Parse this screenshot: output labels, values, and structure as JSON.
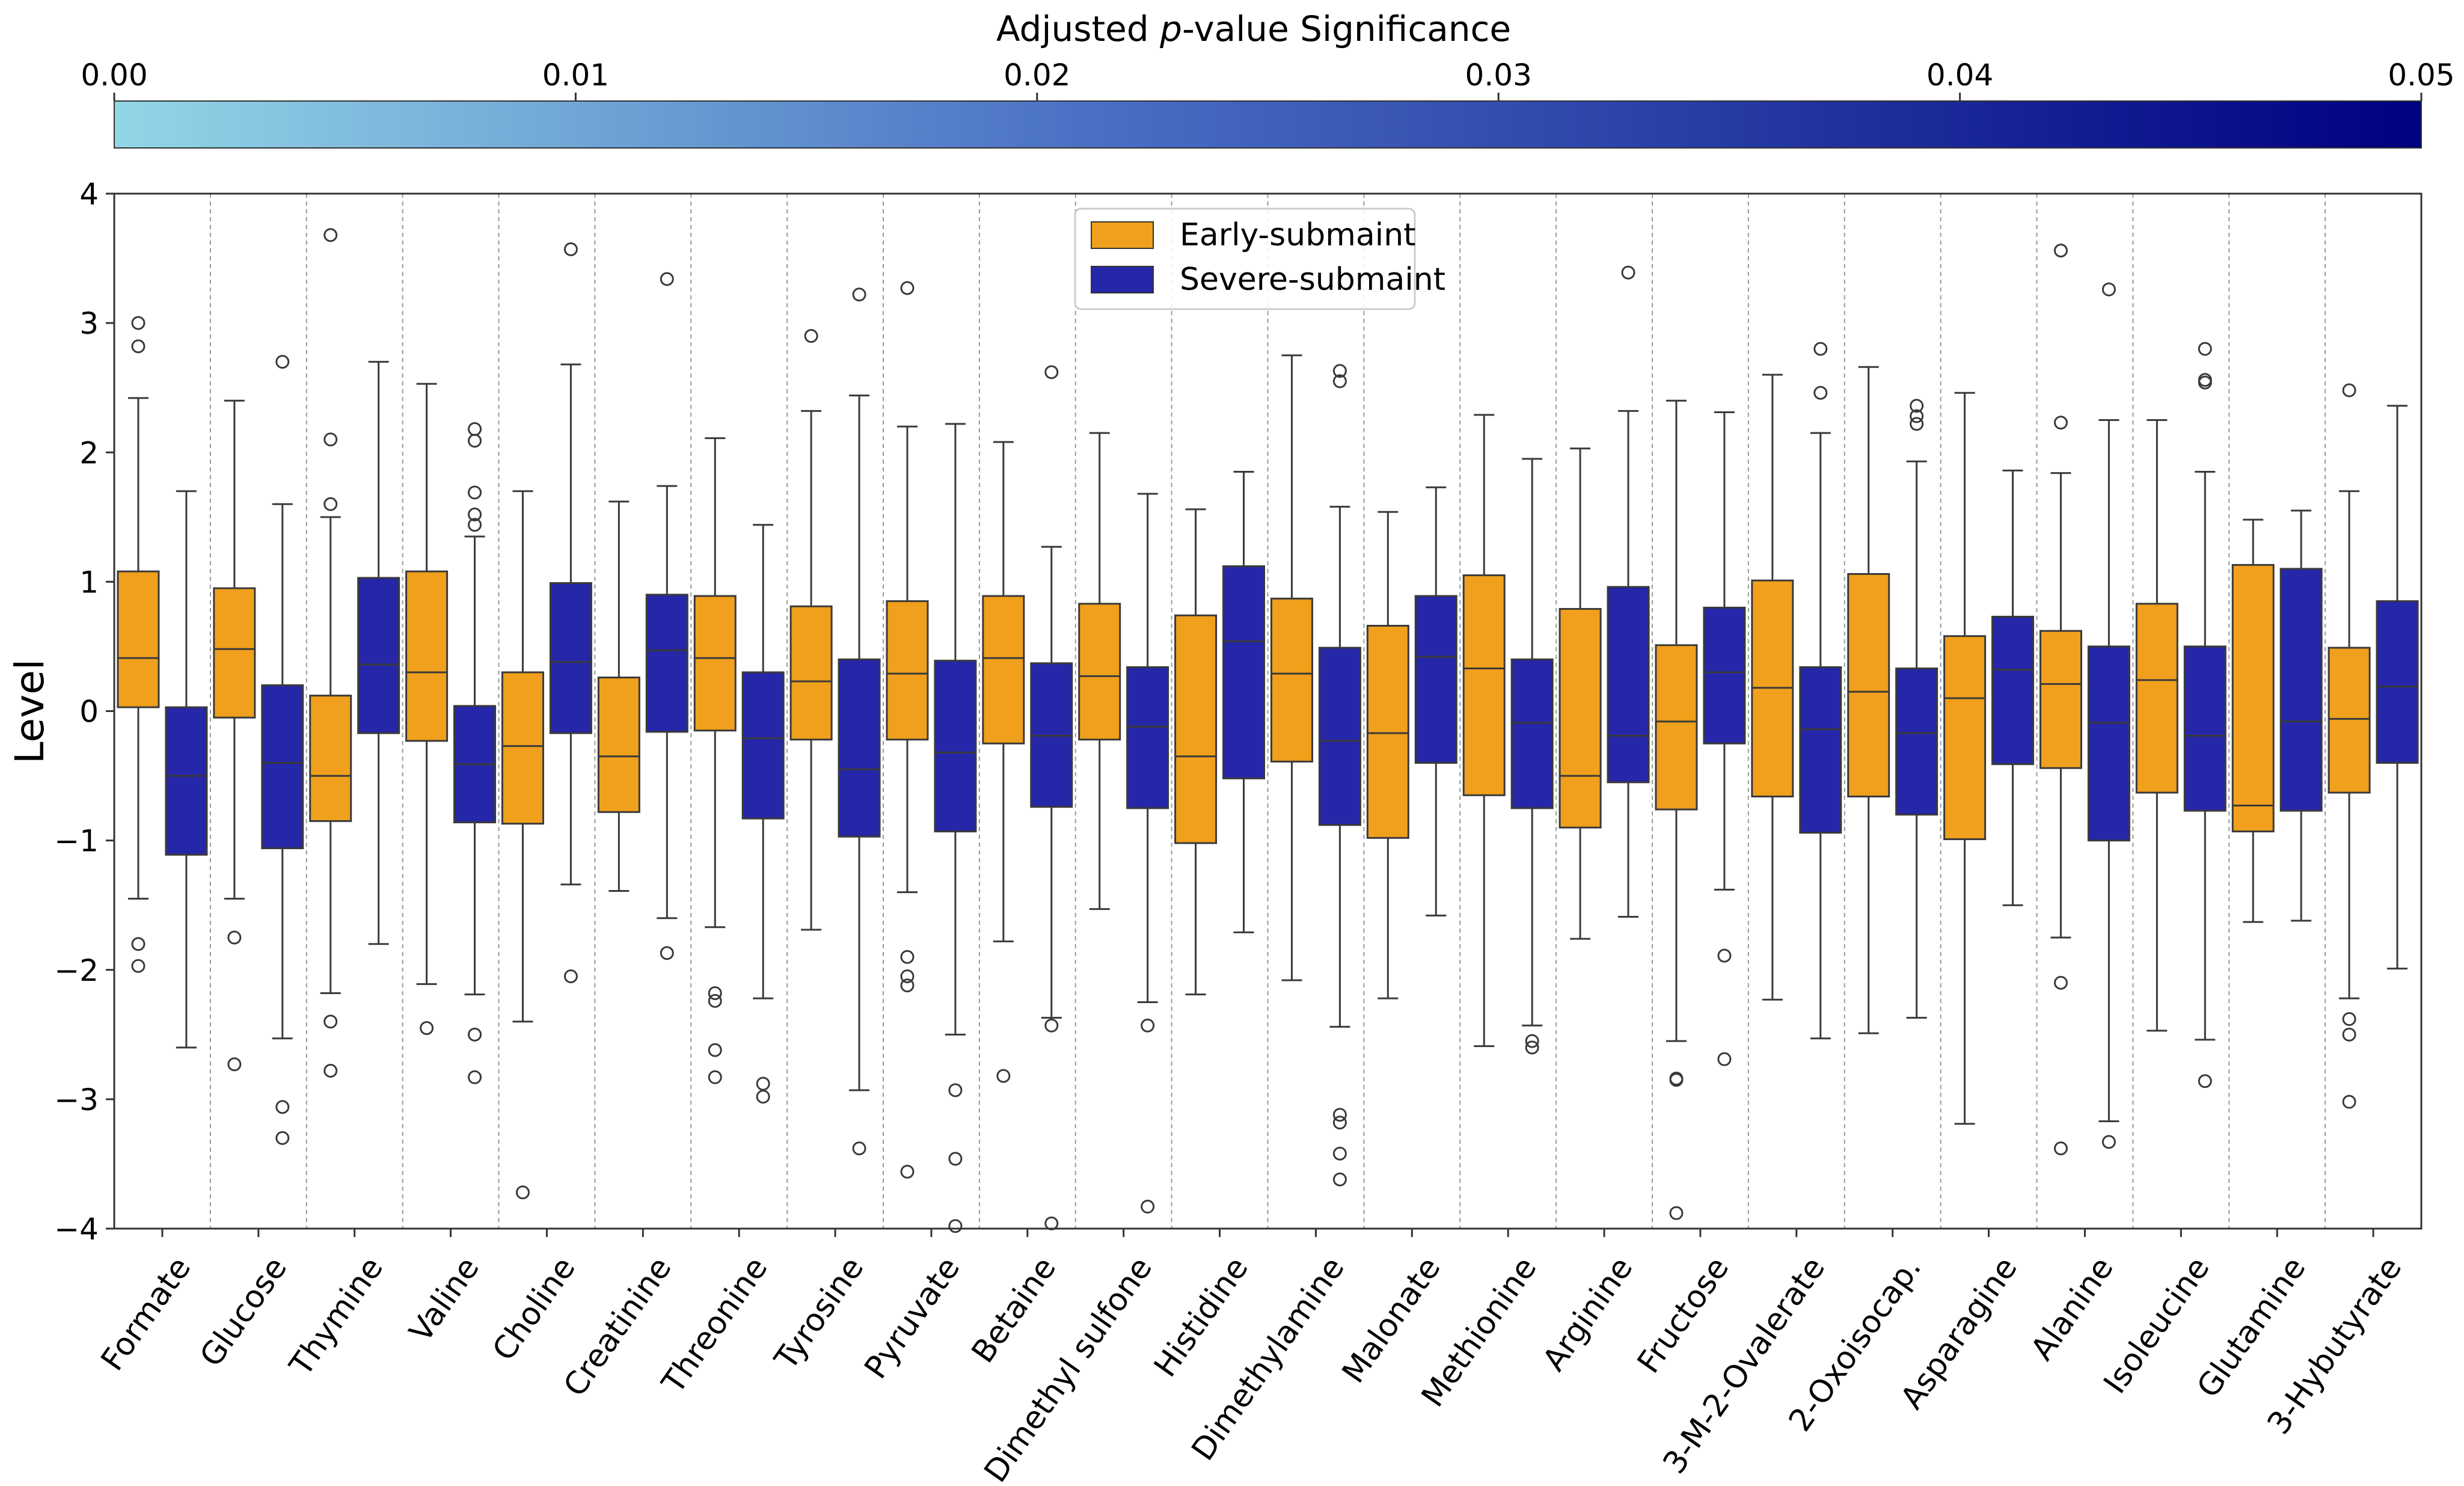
{
  "chart_data": {
    "type": "box",
    "ylabel": "Level",
    "ylim": [
      -4,
      4
    ],
    "yticks": [
      "4",
      "3",
      "2",
      "1",
      "0",
      "−1",
      "−2",
      "−3",
      "−4"
    ],
    "ytick_values": [
      4,
      3,
      2,
      1,
      0,
      -1,
      -2,
      -3,
      -4
    ],
    "colorbar": {
      "title_pre": "Adjusted ",
      "title_italic": "p",
      "title_post": "-value Significance",
      "ticks": [
        "0.00",
        "0.01",
        "0.02",
        "0.03",
        "0.04",
        "0.05"
      ],
      "range": [
        0,
        0.05
      ],
      "color_start": "#93d6e6",
      "color_mid": "#4a70c4",
      "color_end": "#000080"
    },
    "legend": {
      "position": "top-center",
      "entries": [
        {
          "label": "Early-submaint",
          "color": "#f0a01c"
        },
        {
          "label": "Severe-submaint",
          "color": "#2626a8"
        }
      ]
    },
    "series": [
      {
        "name": "Early-submaint",
        "color": "#f0a01c"
      },
      {
        "name": "Severe-submaint",
        "color": "#2626a8"
      }
    ],
    "categories": [
      {
        "label": "Formate",
        "early": {
          "q1": 0.03,
          "med": 0.41,
          "q3": 1.08,
          "lo": -1.45,
          "hi": 2.42,
          "out": [
            3.0,
            2.82,
            -1.8,
            -1.97
          ]
        },
        "severe": {
          "q1": -1.11,
          "med": -0.5,
          "q3": 0.03,
          "lo": -2.6,
          "hi": 1.7,
          "out": []
        }
      },
      {
        "label": "Glucose",
        "early": {
          "q1": -0.05,
          "med": 0.48,
          "q3": 0.95,
          "lo": -1.45,
          "hi": 2.4,
          "out": [
            -1.75,
            -2.73
          ]
        },
        "severe": {
          "q1": -1.06,
          "med": -0.4,
          "q3": 0.2,
          "lo": -2.53,
          "hi": 1.6,
          "out": [
            2.7,
            -3.06,
            -3.3
          ]
        }
      },
      {
        "label": "Thymine",
        "early": {
          "q1": -0.85,
          "med": -0.5,
          "q3": 0.12,
          "lo": -2.18,
          "hi": 1.5,
          "out": [
            3.68,
            2.1,
            1.6,
            -2.4,
            -2.78
          ]
        },
        "severe": {
          "q1": -0.17,
          "med": 0.36,
          "q3": 1.03,
          "lo": -1.8,
          "hi": 2.7,
          "out": []
        }
      },
      {
        "label": "Valine",
        "early": {
          "q1": -0.23,
          "med": 0.3,
          "q3": 1.08,
          "lo": -2.11,
          "hi": 2.53,
          "out": [
            -2.45
          ]
        },
        "severe": {
          "q1": -0.86,
          "med": -0.41,
          "q3": 0.04,
          "lo": -2.19,
          "hi": 1.35,
          "out": [
            2.18,
            2.09,
            1.69,
            1.52,
            1.44,
            -2.5,
            -2.83
          ]
        }
      },
      {
        "label": "Choline",
        "early": {
          "q1": -0.87,
          "med": -0.27,
          "q3": 0.3,
          "lo": -2.4,
          "hi": 1.7,
          "out": [
            -3.72
          ]
        },
        "severe": {
          "q1": -0.17,
          "med": 0.38,
          "q3": 0.99,
          "lo": -1.34,
          "hi": 2.68,
          "out": [
            3.57,
            -2.05
          ]
        }
      },
      {
        "label": "Creatinine",
        "early": {
          "q1": -0.78,
          "med": -0.35,
          "q3": 0.26,
          "lo": -1.39,
          "hi": 1.62,
          "out": []
        },
        "severe": {
          "q1": -0.16,
          "med": 0.47,
          "q3": 0.9,
          "lo": -1.6,
          "hi": 1.74,
          "out": [
            3.34,
            -1.87
          ]
        }
      },
      {
        "label": "Threonine",
        "early": {
          "q1": -0.15,
          "med": 0.41,
          "q3": 0.89,
          "lo": -1.67,
          "hi": 2.11,
          "out": [
            -2.18,
            -2.24,
            -2.62,
            -2.83
          ]
        },
        "severe": {
          "q1": -0.83,
          "med": -0.21,
          "q3": 0.3,
          "lo": -2.22,
          "hi": 1.44,
          "out": [
            -2.88,
            -2.98
          ]
        }
      },
      {
        "label": "Tyrosine",
        "early": {
          "q1": -0.22,
          "med": 0.23,
          "q3": 0.81,
          "lo": -1.69,
          "hi": 2.32,
          "out": [
            2.9
          ]
        },
        "severe": {
          "q1": -0.97,
          "med": -0.45,
          "q3": 0.4,
          "lo": -2.93,
          "hi": 2.44,
          "out": [
            3.22,
            -3.38
          ]
        }
      },
      {
        "label": "Pyruvate",
        "early": {
          "q1": -0.22,
          "med": 0.29,
          "q3": 0.85,
          "lo": -1.4,
          "hi": 2.2,
          "out": [
            3.27,
            -1.9,
            -2.05,
            -2.12,
            -3.56
          ]
        },
        "severe": {
          "q1": -0.93,
          "med": -0.32,
          "q3": 0.39,
          "lo": -2.5,
          "hi": 2.22,
          "out": [
            -2.93,
            -3.46,
            -3.98
          ]
        }
      },
      {
        "label": "Betaine",
        "early": {
          "q1": -0.25,
          "med": 0.41,
          "q3": 0.89,
          "lo": -1.78,
          "hi": 2.08,
          "out": [
            -2.82
          ]
        },
        "severe": {
          "q1": -0.74,
          "med": -0.19,
          "q3": 0.37,
          "lo": -2.37,
          "hi": 1.27,
          "out": [
            2.62,
            -2.43,
            -3.96
          ]
        }
      },
      {
        "label": "Dimethyl sulfone",
        "early": {
          "q1": -0.22,
          "med": 0.27,
          "q3": 0.83,
          "lo": -1.53,
          "hi": 2.15,
          "out": []
        },
        "severe": {
          "q1": -0.75,
          "med": -0.12,
          "q3": 0.34,
          "lo": -2.25,
          "hi": 1.68,
          "out": [
            -2.43,
            -3.83
          ]
        }
      },
      {
        "label": "Histidine",
        "early": {
          "q1": -1.02,
          "med": -0.35,
          "q3": 0.74,
          "lo": -2.19,
          "hi": 1.56,
          "out": []
        },
        "severe": {
          "q1": -0.52,
          "med": 0.54,
          "q3": 1.12,
          "lo": -1.71,
          "hi": 1.85,
          "out": []
        }
      },
      {
        "label": "Dimethylamine",
        "early": {
          "q1": -0.39,
          "med": 0.29,
          "q3": 0.87,
          "lo": -2.08,
          "hi": 2.75,
          "out": []
        },
        "severe": {
          "q1": -0.88,
          "med": -0.23,
          "q3": 0.49,
          "lo": -2.44,
          "hi": 1.58,
          "out": [
            2.63,
            2.55,
            -3.12,
            -3.18,
            -3.42,
            -3.62
          ]
        }
      },
      {
        "label": "Malonate",
        "early": {
          "q1": -0.98,
          "med": -0.17,
          "q3": 0.66,
          "lo": -2.22,
          "hi": 1.54,
          "out": []
        },
        "severe": {
          "q1": -0.4,
          "med": 0.42,
          "q3": 0.89,
          "lo": -1.58,
          "hi": 1.73,
          "out": []
        }
      },
      {
        "label": "Methionine",
        "early": {
          "q1": -0.65,
          "med": 0.33,
          "q3": 1.05,
          "lo": -2.59,
          "hi": 2.29,
          "out": []
        },
        "severe": {
          "q1": -0.75,
          "med": -0.09,
          "q3": 0.4,
          "lo": -2.43,
          "hi": 1.95,
          "out": [
            -2.55,
            -2.6
          ]
        }
      },
      {
        "label": "Arginine",
        "early": {
          "q1": -0.9,
          "med": -0.5,
          "q3": 0.79,
          "lo": -1.76,
          "hi": 2.03,
          "out": []
        },
        "severe": {
          "q1": -0.55,
          "med": -0.19,
          "q3": 0.96,
          "lo": -1.59,
          "hi": 2.32,
          "out": [
            3.39
          ]
        }
      },
      {
        "label": "Fructose",
        "early": {
          "q1": -0.76,
          "med": -0.08,
          "q3": 0.51,
          "lo": -2.55,
          "hi": 2.4,
          "out": [
            -2.84,
            -2.85,
            -3.88
          ]
        },
        "severe": {
          "q1": -0.25,
          "med": 0.3,
          "q3": 0.8,
          "lo": -1.38,
          "hi": 2.31,
          "out": [
            -1.89,
            -2.69
          ]
        }
      },
      {
        "label": "3-M-2-Ovalerate",
        "early": {
          "q1": -0.66,
          "med": 0.18,
          "q3": 1.01,
          "lo": -2.23,
          "hi": 2.6,
          "out": []
        },
        "severe": {
          "q1": -0.94,
          "med": -0.14,
          "q3": 0.34,
          "lo": -2.53,
          "hi": 2.15,
          "out": [
            2.8,
            2.46
          ]
        }
      },
      {
        "label": "2-Oxoisocap.",
        "early": {
          "q1": -0.66,
          "med": 0.15,
          "q3": 1.06,
          "lo": -2.49,
          "hi": 2.66,
          "out": []
        },
        "severe": {
          "q1": -0.8,
          "med": -0.17,
          "q3": 0.33,
          "lo": -2.37,
          "hi": 1.93,
          "out": [
            2.36,
            2.28,
            2.22
          ]
        }
      },
      {
        "label": "Asparagine",
        "early": {
          "q1": -0.99,
          "med": 0.1,
          "q3": 0.58,
          "lo": -3.19,
          "hi": 2.46,
          "out": []
        },
        "severe": {
          "q1": -0.41,
          "med": 0.32,
          "q3": 0.73,
          "lo": -1.5,
          "hi": 1.86,
          "out": []
        }
      },
      {
        "label": "Alanine",
        "early": {
          "q1": -0.44,
          "med": 0.21,
          "q3": 0.62,
          "lo": -1.75,
          "hi": 1.84,
          "out": [
            3.56,
            2.23,
            -2.1,
            -3.38
          ]
        },
        "severe": {
          "q1": -1.0,
          "med": -0.09,
          "q3": 0.5,
          "lo": -3.17,
          "hi": 2.25,
          "out": [
            3.26,
            -3.33
          ]
        }
      },
      {
        "label": "Isoleucine",
        "early": {
          "q1": -0.63,
          "med": 0.24,
          "q3": 0.83,
          "lo": -2.47,
          "hi": 2.25,
          "out": []
        },
        "severe": {
          "q1": -0.77,
          "med": -0.19,
          "q3": 0.5,
          "lo": -2.54,
          "hi": 1.85,
          "out": [
            2.8,
            2.56,
            2.54,
            -2.86
          ]
        }
      },
      {
        "label": "Glutamine",
        "early": {
          "q1": -0.93,
          "med": -0.73,
          "q3": 1.13,
          "lo": -1.63,
          "hi": 1.48,
          "out": []
        },
        "severe": {
          "q1": -0.77,
          "med": -0.08,
          "q3": 1.1,
          "lo": -1.62,
          "hi": 1.55,
          "out": []
        }
      },
      {
        "label": "3-Hybutyrate",
        "early": {
          "q1": -0.63,
          "med": -0.06,
          "q3": 0.49,
          "lo": -2.22,
          "hi": 1.7,
          "out": [
            2.48,
            -2.38,
            -2.5,
            -3.02
          ]
        },
        "severe": {
          "q1": -0.4,
          "med": 0.19,
          "q3": 0.85,
          "lo": -1.99,
          "hi": 2.36,
          "out": []
        }
      }
    ]
  }
}
